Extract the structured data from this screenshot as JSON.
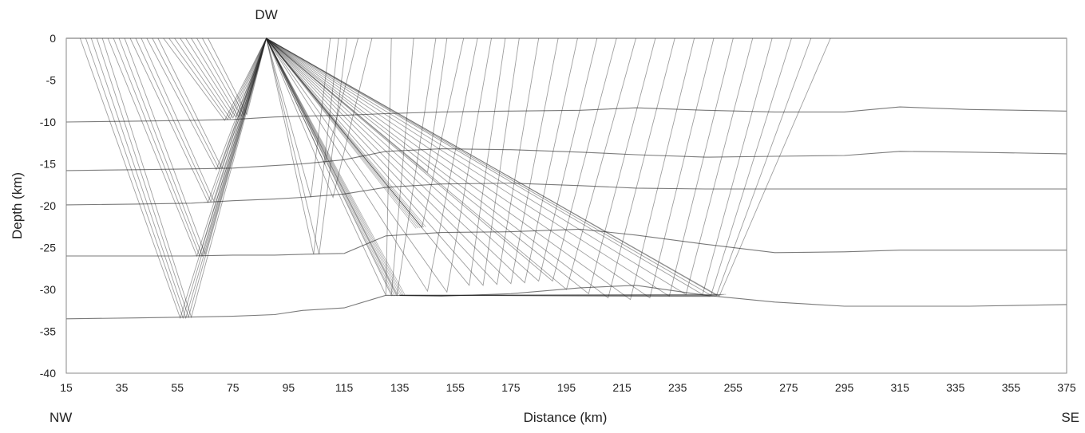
{
  "chart_data": {
    "type": "line",
    "title": "",
    "xlabel": "Distance (km)",
    "ylabel": "Depth (km)",
    "xlim": [
      15,
      375
    ],
    "ylim": [
      -40,
      0
    ],
    "xticks": [
      15,
      35,
      55,
      75,
      95,
      115,
      135,
      155,
      175,
      195,
      215,
      235,
      255,
      275,
      295,
      315,
      335,
      355,
      375
    ],
    "yticks": [
      0,
      -5,
      -10,
      -15,
      -20,
      -25,
      -30,
      -35,
      -40
    ],
    "direction_labels": {
      "left": "NW",
      "right": "SE"
    },
    "source": {
      "label": "DW",
      "x": 87,
      "y": 0
    },
    "grid": false,
    "legend": "none",
    "layer_interfaces": [
      {
        "x": [
          15,
          40,
          60,
          75,
          90,
          100,
          115,
          130,
          150,
          175,
          200,
          220,
          245,
          270,
          295,
          315,
          340,
          375
        ],
        "y": [
          0,
          0,
          0,
          0,
          0,
          0,
          0,
          0,
          0,
          0,
          0,
          0,
          0,
          0,
          0,
          0,
          0,
          0
        ]
      },
      {
        "x": [
          15,
          40,
          60,
          75,
          90,
          100,
          115,
          130,
          150,
          175,
          200,
          220,
          245,
          270,
          295,
          315,
          340,
          375
        ],
        "y": [
          -10.0,
          -9.9,
          -9.8,
          -9.7,
          -9.4,
          -9.3,
          -9.2,
          -9.0,
          -8.8,
          -8.7,
          -8.6,
          -8.3,
          -8.6,
          -8.8,
          -8.8,
          -8.2,
          -8.5,
          -8.7
        ]
      },
      {
        "x": [
          15,
          40,
          60,
          75,
          90,
          100,
          115,
          130,
          150,
          175,
          200,
          220,
          245,
          270,
          295,
          315,
          340,
          375
        ],
        "y": [
          -15.8,
          -15.7,
          -15.6,
          -15.5,
          -15.2,
          -15.0,
          -14.5,
          -13.5,
          -13.2,
          -13.3,
          -13.6,
          -13.9,
          -14.2,
          -14.1,
          -14.0,
          -13.5,
          -13.6,
          -13.8
        ]
      },
      {
        "x": [
          15,
          40,
          60,
          75,
          90,
          100,
          115,
          130,
          150,
          175,
          200,
          220,
          245,
          270,
          295,
          315,
          340,
          375
        ],
        "y": [
          -19.9,
          -19.8,
          -19.7,
          -19.4,
          -19.2,
          -19.0,
          -18.6,
          -17.8,
          -17.4,
          -17.3,
          -17.6,
          -17.9,
          -18.0,
          -18.0,
          -18.0,
          -18.0,
          -18.0,
          -18.0
        ]
      },
      {
        "x": [
          15,
          40,
          60,
          75,
          90,
          100,
          115,
          130,
          150,
          175,
          200,
          220,
          245,
          270,
          295,
          315,
          340,
          375
        ],
        "y": [
          -26.0,
          -26.0,
          -26.0,
          -25.9,
          -25.9,
          -25.8,
          -25.7,
          -23.6,
          -23.2,
          -23.1,
          -22.8,
          -23.5,
          -24.6,
          -25.6,
          -25.5,
          -25.3,
          -25.3,
          -25.3
        ]
      },
      {
        "x": [
          15,
          40,
          60,
          75,
          90,
          100,
          115,
          130,
          150,
          175,
          200,
          220,
          245,
          270,
          295,
          315,
          340,
          375
        ],
        "y": [
          -33.5,
          -33.4,
          -33.3,
          -33.2,
          -33.0,
          -32.5,
          -32.2,
          -30.7,
          -30.8,
          -30.5,
          -29.8,
          -29.5,
          -30.7,
          -31.5,
          -32.0,
          -32.0,
          -32.0,
          -31.8
        ]
      }
    ],
    "ray_paths": {
      "left_turning": [
        {
          "x_far": 20,
          "turn_x": 56,
          "turn_y": -33.4
        },
        {
          "x_far": 22,
          "turn_x": 57,
          "turn_y": -33.4
        },
        {
          "x_far": 24,
          "turn_x": 58,
          "turn_y": -33.4
        },
        {
          "x_far": 26,
          "turn_x": 59,
          "turn_y": -33.3
        },
        {
          "x_far": 28,
          "turn_x": 60,
          "turn_y": -33.3
        },
        {
          "x_far": 30,
          "turn_x": 62,
          "turn_y": -26.0
        },
        {
          "x_far": 32,
          "turn_x": 63,
          "turn_y": -26.0
        },
        {
          "x_far": 34,
          "turn_x": 64,
          "turn_y": -26.0
        },
        {
          "x_far": 36,
          "turn_x": 65,
          "turn_y": -25.8
        },
        {
          "x_far": 38,
          "turn_x": 66,
          "turn_y": -19.6
        },
        {
          "x_far": 40,
          "turn_x": 67,
          "turn_y": -19.5
        },
        {
          "x_far": 42,
          "turn_x": 68,
          "turn_y": -19.4
        },
        {
          "x_far": 44,
          "turn_x": 69,
          "turn_y": -15.7
        },
        {
          "x_far": 46,
          "turn_x": 70,
          "turn_y": -15.6
        },
        {
          "x_far": 48,
          "turn_x": 71,
          "turn_y": -15.5
        },
        {
          "x_far": 50,
          "turn_x": 72,
          "turn_y": -9.8
        },
        {
          "x_far": 52,
          "turn_x": 73,
          "turn_y": -9.7
        },
        {
          "x_far": 54,
          "turn_x": 74,
          "turn_y": -9.6
        },
        {
          "x_far": 56,
          "turn_x": 75,
          "turn_y": -9.5
        },
        {
          "x_far": 58,
          "turn_x": 76,
          "turn_y": -9.4
        },
        {
          "x_far": 60,
          "turn_x": 77,
          "turn_y": -9.4
        },
        {
          "x_far": 62,
          "turn_x": 78,
          "turn_y": -9.3
        },
        {
          "x_far": 64,
          "turn_x": 79,
          "turn_y": -9.2
        },
        {
          "x_far": 66,
          "turn_x": 80,
          "turn_y": -9.1
        }
      ],
      "right_turning": [
        {
          "x_far": 110,
          "turn_x": 103,
          "turn_y": -19.0
        },
        {
          "x_far": 113,
          "turn_x": 104,
          "turn_y": -25.8
        },
        {
          "x_far": 116,
          "turn_x": 106,
          "turn_y": -25.8
        },
        {
          "x_far": 120,
          "turn_x": 108,
          "turn_y": -15.0
        },
        {
          "x_far": 125,
          "turn_x": 111,
          "turn_y": -19.0
        },
        {
          "x_far": 132,
          "turn_x": 130,
          "turn_y": -30.7
        },
        {
          "x_far": 140,
          "turn_x": 132,
          "turn_y": -30.7
        },
        {
          "x_far": 148,
          "turn_x": 134,
          "turn_y": -30.7
        },
        {
          "x_far": 152,
          "turn_x": 145,
          "turn_y": -16.0
        },
        {
          "x_far": 158,
          "turn_x": 143,
          "turn_y": -22.6
        },
        {
          "x_far": 163,
          "turn_x": 145,
          "turn_y": -30.2
        },
        {
          "x_far": 168,
          "turn_x": 152,
          "turn_y": -30.3
        },
        {
          "x_far": 173,
          "turn_x": 160,
          "turn_y": -29.5
        },
        {
          "x_far": 178,
          "turn_x": 165,
          "turn_y": -29.5
        },
        {
          "x_far": 185,
          "turn_x": 170,
          "turn_y": -29.4
        },
        {
          "x_far": 192,
          "turn_x": 175,
          "turn_y": -29.3
        },
        {
          "x_far": 199,
          "turn_x": 180,
          "turn_y": -29.2
        },
        {
          "x_far": 206,
          "turn_x": 185,
          "turn_y": -29.0
        },
        {
          "x_far": 213,
          "turn_x": 190,
          "turn_y": -29.0
        },
        {
          "x_far": 220,
          "turn_x": 195,
          "turn_y": -30.0
        },
        {
          "x_far": 227,
          "turn_x": 203,
          "turn_y": -30.5
        },
        {
          "x_far": 234,
          "turn_x": 210,
          "turn_y": -31.0
        },
        {
          "x_far": 241,
          "turn_x": 218,
          "turn_y": -31.2
        },
        {
          "x_far": 248,
          "turn_x": 225,
          "turn_y": -31.0
        },
        {
          "x_far": 255,
          "turn_x": 232,
          "turn_y": -30.8
        },
        {
          "x_far": 262,
          "turn_x": 238,
          "turn_y": -30.6
        },
        {
          "x_far": 269,
          "turn_x": 244,
          "turn_y": -30.6
        },
        {
          "x_far": 276,
          "turn_x": 247,
          "turn_y": -30.7
        },
        {
          "x_far": 283,
          "turn_x": 249,
          "turn_y": -30.7
        },
        {
          "x_far": 290,
          "turn_x": 250,
          "turn_y": -30.8
        }
      ]
    }
  }
}
